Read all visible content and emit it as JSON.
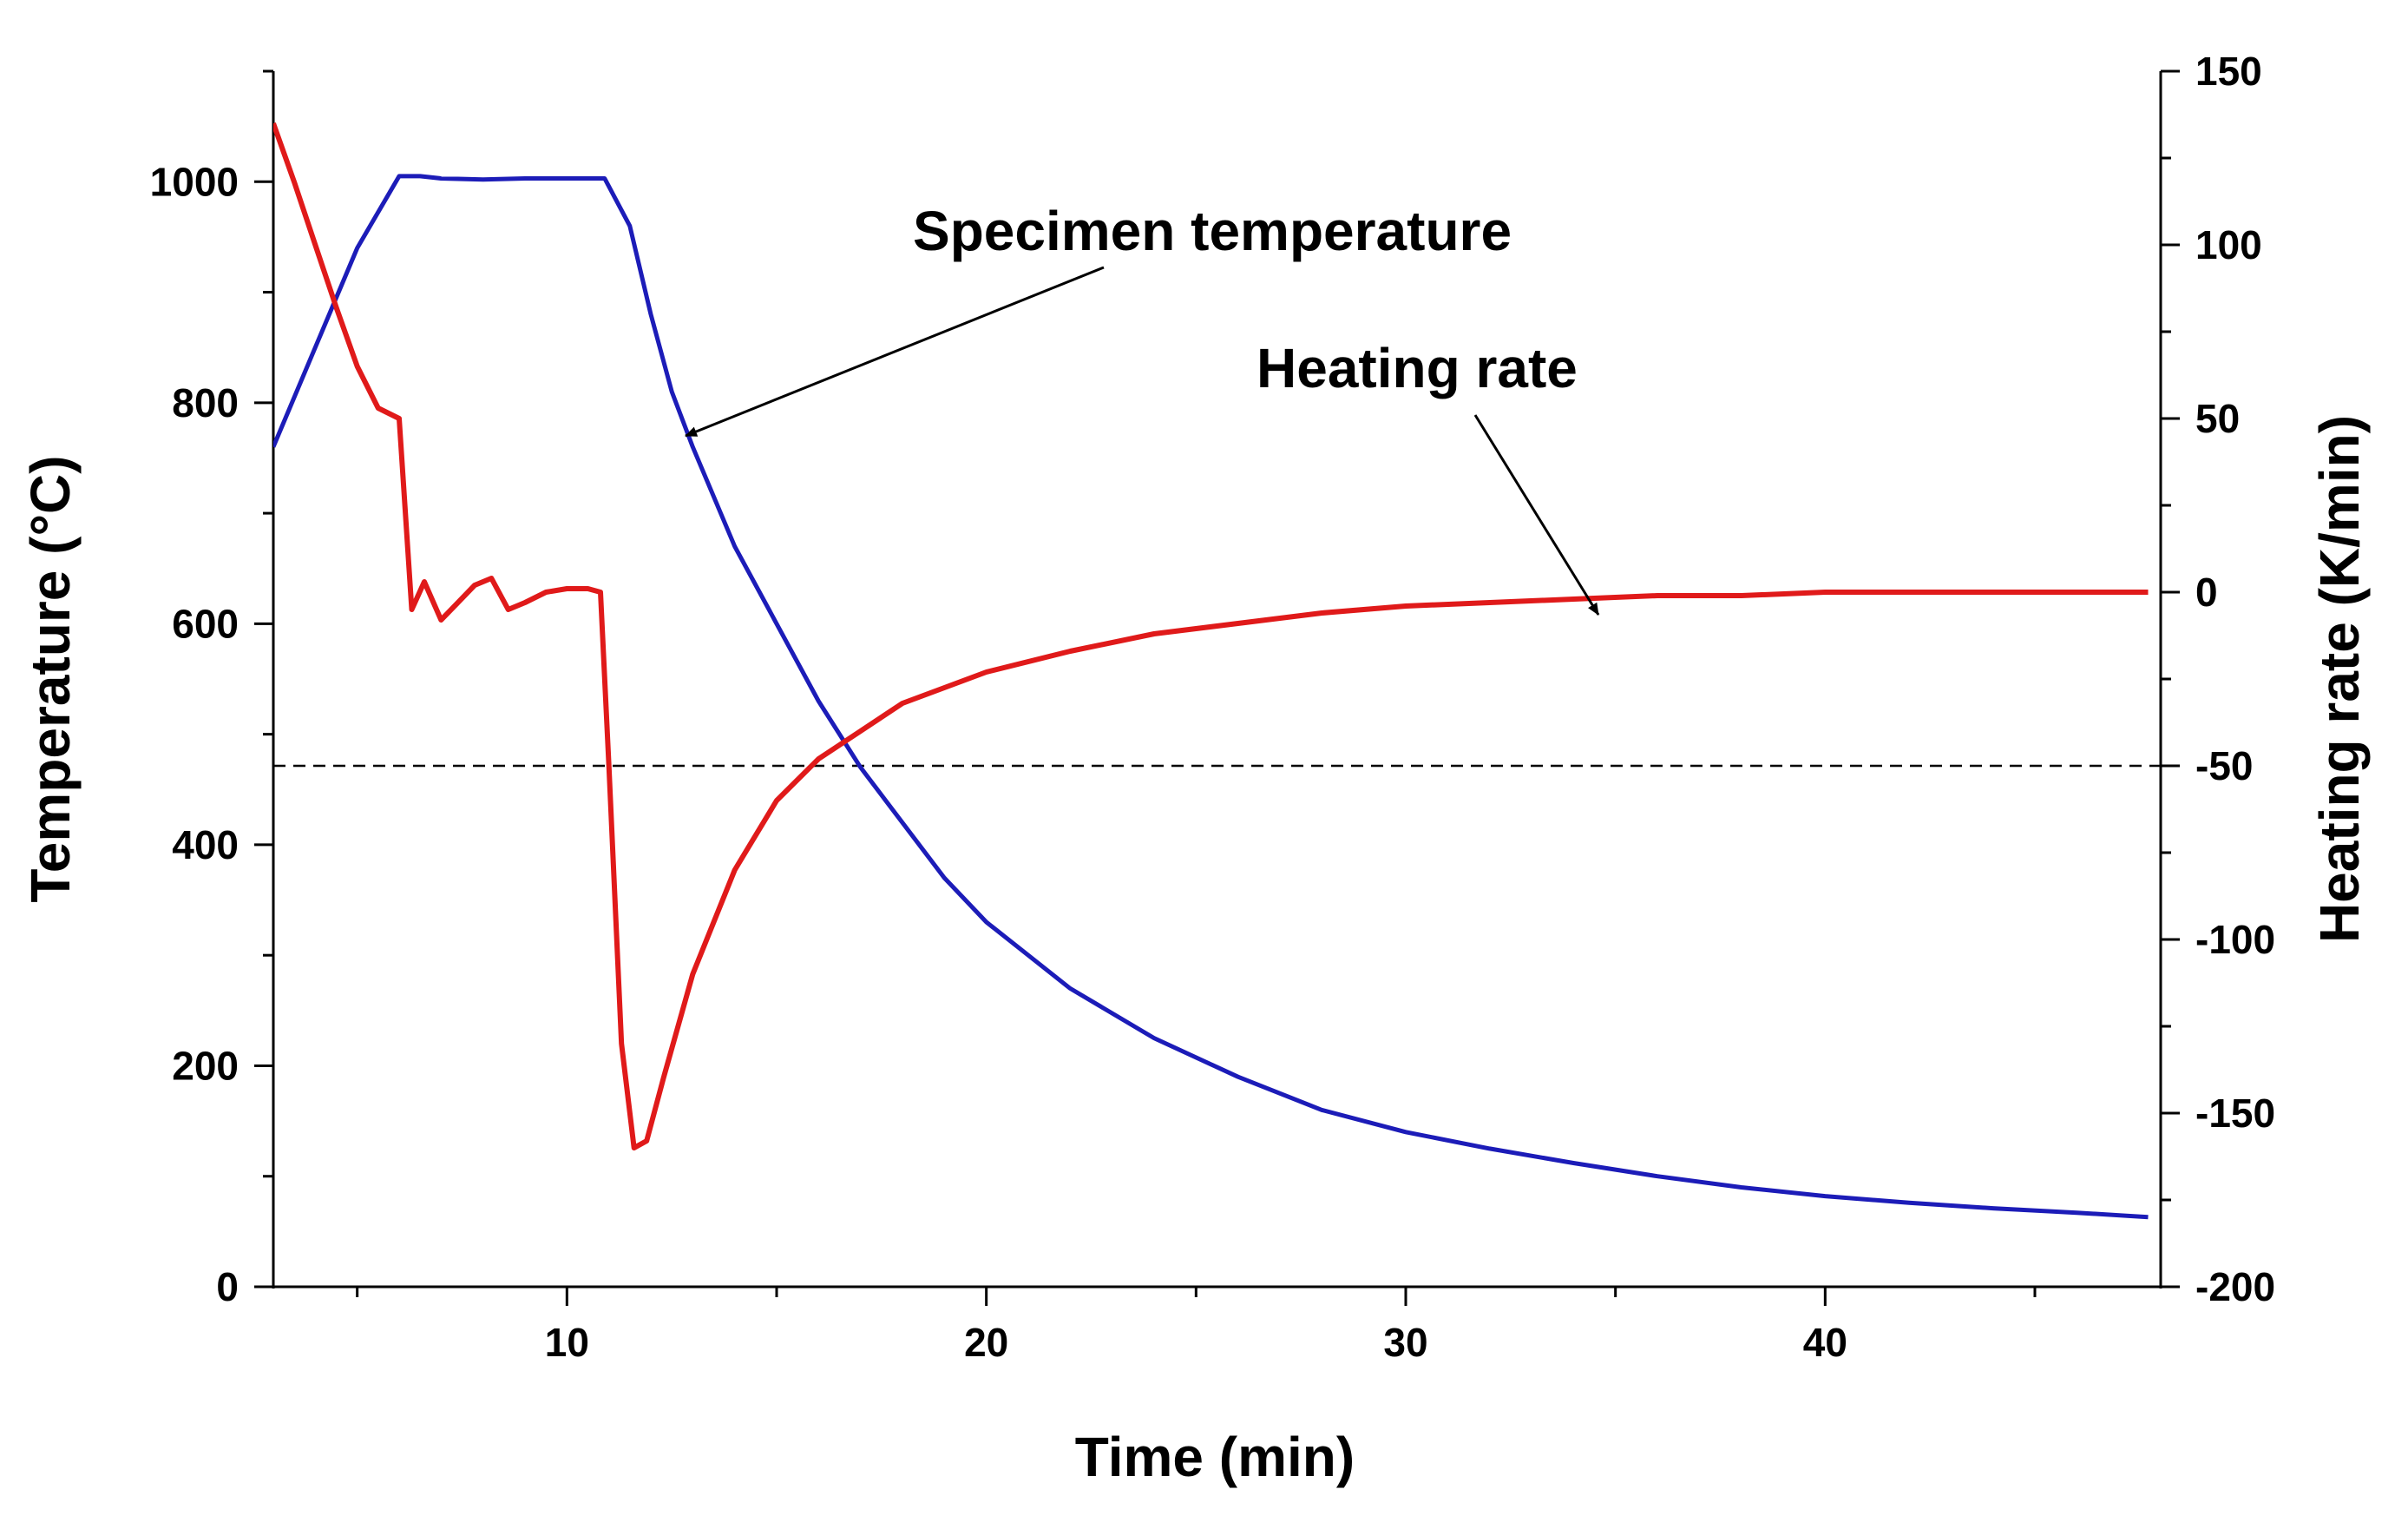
{
  "chart_data": {
    "type": "line",
    "title": "",
    "xlabel": "Time (min)",
    "ylabel_left": "Temperature (°C)",
    "ylabel_right": "Heating rate (K/min)",
    "xlim": [
      3,
      48
    ],
    "ylim_left": [
      0,
      1100
    ],
    "ylim_right": [
      -200,
      150
    ],
    "x_ticks": [
      10,
      20,
      30,
      40
    ],
    "y_left_ticks": [
      0,
      200,
      400,
      600,
      800,
      1000
    ],
    "y_right_ticks": [
      -200,
      -150,
      -100,
      -50,
      0,
      50,
      100,
      150
    ],
    "reference_line": {
      "axis": "right",
      "value": -50,
      "style": "dashed",
      "color": "#000000"
    },
    "series": [
      {
        "name": "Specimen temperature",
        "axis": "left",
        "color": "#1c1cb8",
        "x": [
          3,
          4,
          5,
          6,
          6.5,
          7,
          8,
          9,
          10,
          10.9,
          11.5,
          12,
          12.5,
          13,
          14,
          15,
          16,
          17,
          18,
          19,
          20,
          22,
          24,
          26,
          28,
          30,
          32,
          34,
          36,
          38,
          40,
          42,
          44,
          46,
          47.7
        ],
        "values": [
          760,
          850,
          940,
          1005,
          1005,
          1003,
          1002,
          1003,
          1003,
          1003,
          960,
          880,
          810,
          760,
          670,
          600,
          530,
          470,
          420,
          370,
          330,
          270,
          225,
          190,
          160,
          140,
          125,
          112,
          100,
          90,
          82,
          76,
          71,
          67,
          63
        ]
      },
      {
        "name": "Heating rate",
        "axis": "right",
        "color": "#e01a1a",
        "x": [
          3,
          3.5,
          4,
          4.5,
          5,
          5.5,
          6,
          6.3,
          6.6,
          7,
          7.4,
          7.8,
          8.2,
          8.6,
          9,
          9.5,
          10,
          10.5,
          10.8,
          11,
          11.3,
          11.6,
          11.9,
          12.3,
          13,
          14,
          15,
          16,
          17,
          18,
          20,
          22,
          24,
          26,
          28,
          30,
          32,
          34,
          36,
          38,
          40,
          42,
          44,
          46,
          47.7
        ],
        "values": [
          135,
          118,
          100,
          82,
          65,
          53,
          50,
          -5,
          3,
          -8,
          -3,
          2,
          4,
          -5,
          -3,
          0,
          1,
          1,
          0,
          -50,
          -130,
          -160,
          -158,
          -140,
          -110,
          -80,
          -60,
          -48,
          -40,
          -32,
          -23,
          -17,
          -12,
          -9,
          -6,
          -4,
          -3,
          -2,
          -1,
          -1,
          0,
          0,
          0,
          0,
          0
        ]
      }
    ],
    "annotations": [
      {
        "text": "Specimen temperature",
        "points_to": "Specimen temperature"
      },
      {
        "text": "Heating rate",
        "points_to": "Heating rate"
      }
    ]
  }
}
